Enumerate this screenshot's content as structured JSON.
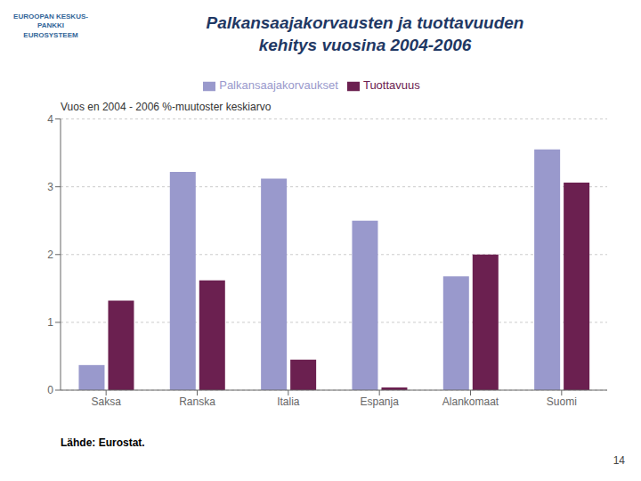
{
  "chart_data": {
    "type": "bar",
    "title": "Palkansaajakorvausten ja tuottavuuden\nkehitys vuosina 2004-2006",
    "y_label": "Vuos en 2004 - 2006 %-muutoster keskiarvo",
    "categories": [
      "Saksa",
      "Ranska",
      "Italia",
      "Espanja",
      "Alankomaat",
      "Suomi"
    ],
    "series": [
      {
        "name": "Palkansaajakorvaukset",
        "color": "#9999CC",
        "values": [
          0.37,
          3.22,
          3.12,
          2.5,
          1.68,
          3.55
        ]
      },
      {
        "name": "Tuottavuus",
        "color": "#6B2050",
        "values": [
          1.32,
          1.62,
          0.45,
          0.04,
          2.0,
          3.06
        ]
      }
    ],
    "ylim": [
      0,
      4
    ],
    "yticks": [
      0,
      1,
      2,
      3,
      4
    ],
    "grid": true,
    "legend": "top",
    "annotations": [
      "Lähde: Eurostat.",
      "14",
      "EUROOPAN KESKUS-\nPANKKI\nEUROSYSTEEM"
    ]
  }
}
